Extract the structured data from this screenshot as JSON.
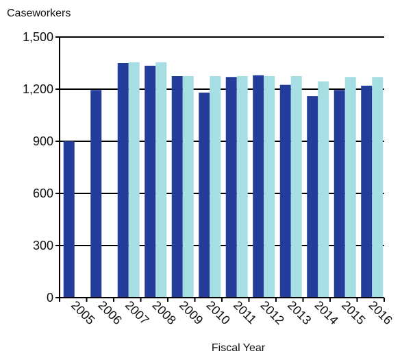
{
  "chart_data": {
    "type": "bar",
    "title": "",
    "ylabel": "Caseworkers",
    "xlabel": "Fiscal Year",
    "categories": [
      "2005",
      "2006",
      "2007",
      "2008",
      "2009",
      "2010",
      "2011",
      "2012",
      "2013",
      "2014",
      "2015",
      "2016"
    ],
    "series": [
      {
        "color": "#243d9a",
        "values": [
          900,
          1195,
          1350,
          1335,
          1275,
          1180,
          1270,
          1280,
          1225,
          1160,
          1195,
          1220
        ]
      },
      {
        "color": "#a6dfe3",
        "values": [
          null,
          null,
          1355,
          1355,
          1275,
          1275,
          1275,
          1275,
          1275,
          1245,
          1270,
          1270
        ]
      }
    ],
    "ylim": [
      0,
      1500
    ],
    "y_ticks": [
      0,
      300,
      600,
      900,
      1200,
      1500
    ],
    "y_tick_labels": [
      "0",
      "300",
      "600",
      "900",
      "1,200",
      "1,500"
    ],
    "grid": true,
    "legend": "none"
  }
}
